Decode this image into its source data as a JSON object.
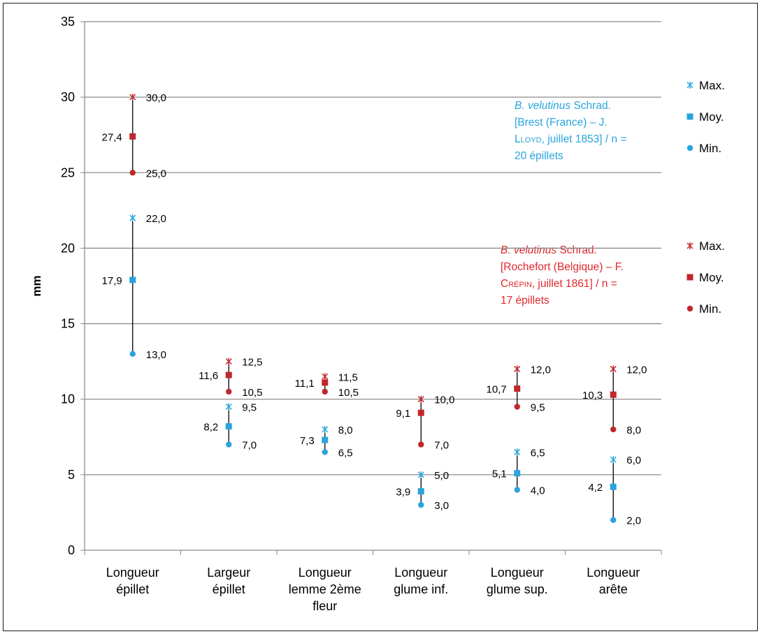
{
  "chart_data": {
    "type": "scatter",
    "ylabel": "mm",
    "ylim": [
      0,
      35
    ],
    "yticks": [
      "0",
      "5",
      "10",
      "15",
      "20",
      "25",
      "30",
      "35"
    ],
    "grid": true,
    "categories": [
      [
        "Longueur",
        "épillet"
      ],
      [
        "Largeur",
        "épillet"
      ],
      [
        "Longueur",
        "lemme 2ème",
        "fleur"
      ],
      [
        "Longueur",
        "glume inf."
      ],
      [
        "Longueur",
        "glume sup."
      ],
      [
        "Longueur",
        "arête"
      ]
    ],
    "groups": [
      {
        "key": "brest",
        "color": "#29a4dc",
        "label": {
          "italic": "B. velutinus",
          "line1_rest": " Schrad.",
          "line2": "[Brest (France) – J.",
          "line3_sc": "Lloyd",
          "line3_rest": ", juillet 1853] / n =",
          "line4": "20 épillets"
        },
        "series": [
          {
            "name": "Max.",
            "marker": "star",
            "values": [
              22.0,
              9.5,
              8.0,
              5.0,
              6.5,
              6.0
            ],
            "labels": [
              "22,0",
              "9,5",
              "8,0",
              "5,0",
              "6,5",
              "6,0"
            ]
          },
          {
            "name": "Moy.",
            "marker": "square",
            "values": [
              17.9,
              8.2,
              7.3,
              3.9,
              5.1,
              4.2
            ],
            "labels": [
              "17,9",
              "8,2",
              "7,3",
              "3,9",
              "5,1",
              "4,2"
            ]
          },
          {
            "name": "Min.",
            "marker": "circle",
            "values": [
              13.0,
              7.0,
              6.5,
              3.0,
              4.0,
              2.0
            ],
            "labels": [
              "13,0",
              "7,0",
              "6,5",
              "3,0",
              "4,0",
              "2,0"
            ]
          }
        ]
      },
      {
        "key": "rochefort",
        "color": "#c0272d",
        "label": {
          "italic": "B. velutinus",
          "line1_rest": " Schrad.",
          "line2": "[Rochefort (Belgique) – F.",
          "line3_sc": "Crépin",
          "line3_rest": ", juillet 1861] / n =",
          "line4": "17 épillets"
        },
        "series": [
          {
            "name": "Max.",
            "marker": "star",
            "values": [
              30.0,
              12.5,
              11.5,
              10.0,
              12.0,
              12.0
            ],
            "labels": [
              "30,0",
              "12,5",
              "11,5",
              "10,0",
              "12,0",
              "12,0"
            ]
          },
          {
            "name": "Moy.",
            "marker": "square",
            "values": [
              27.4,
              11.6,
              11.1,
              9.1,
              10.7,
              10.3
            ],
            "labels": [
              "27,4",
              "11,6",
              "11,1",
              "9,1",
              "10,7",
              "10,3"
            ]
          },
          {
            "name": "Min.",
            "marker": "circle",
            "values": [
              25.0,
              10.5,
              10.5,
              7.0,
              9.5,
              8.0
            ],
            "labels": [
              "25,0",
              "10,5",
              "10,5",
              "7,0",
              "9,5",
              "8,0"
            ]
          }
        ]
      }
    ],
    "legend_position": "right"
  }
}
